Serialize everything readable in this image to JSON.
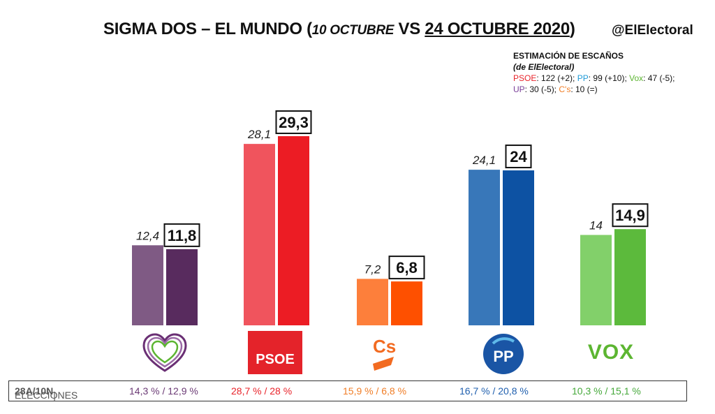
{
  "title": {
    "main": "SIGMA DOS – EL MUNDO (",
    "prev_date": "10 OCTUBRE",
    "vs": " VS ",
    "new_date": "24 OCTUBRE 2020",
    "close": ")"
  },
  "handle": "@ElElectoral",
  "seats": {
    "heading": "ESTIMACIÓN DE ESCAÑOS",
    "subheading": "(de ElElectoral)",
    "rows": [
      [
        {
          "label": "PSOE",
          "value": ": 122 (+2); ",
          "color": "#e8232a"
        },
        {
          "label": "PP",
          "value": ": 99 (+10); ",
          "color": "#1f9bd7"
        },
        {
          "label": "Vox",
          "value": ": 47 (-5);",
          "color": "#5cb531"
        }
      ],
      [
        {
          "label": "UP",
          "value": ": 30 (-5); ",
          "color": "#7a3f98"
        },
        {
          "label": "C's",
          "value": ": 10 (=)",
          "color": "#f07d26"
        }
      ]
    ]
  },
  "colors": {
    "up_prev": "#7f5a84",
    "up_new": "#582b5e",
    "psoe_prev": "#f0545d",
    "psoe_new": "#ec1c24",
    "cs_prev": "#fd7f3b",
    "cs_new": "#fe5000",
    "pp_prev": "#3877b9",
    "pp_new": "#0d52a3",
    "vox_prev": "#82d06a",
    "vox_new": "#5cba3c"
  },
  "chart_data": {
    "type": "bar",
    "categories": [
      "UP",
      "PSOE",
      "Cs",
      "PP",
      "VOX"
    ],
    "series": [
      {
        "name": "10 OCTUBRE",
        "values": [
          12.4,
          28.1,
          7.2,
          24.1,
          14
        ],
        "labels": [
          "12,4",
          "28,1",
          "7,2",
          "24,1",
          "14"
        ]
      },
      {
        "name": "24 OCTUBRE 2020",
        "values": [
          11.8,
          29.3,
          6.8,
          24,
          14.9
        ],
        "labels": [
          "11,8",
          "29,3",
          "6,8",
          "24",
          "14,9"
        ]
      }
    ],
    "ylim": [
      0,
      30
    ],
    "grid": false
  },
  "logos": {
    "psoe_text": "PSOE",
    "cs_text": "Cs",
    "pp_text": "PP",
    "vox_text": "VOX"
  },
  "footer": {
    "label": "ELECCIONES ",
    "label_bold": "28A/10N",
    "sep": "|",
    "values": [
      {
        "text": "14,3 % / 12,9 %",
        "color": "#6b3a75"
      },
      {
        "text": "28,7  % / 28 %",
        "color": "#e8232a"
      },
      {
        "text": "15,9 % / 6,8 %",
        "color": "#f07d26"
      },
      {
        "text": "16,7 % / 20,8 %",
        "color": "#1f5fae"
      },
      {
        "text": "10,3 % / 15,1 %",
        "color": "#45a83a"
      }
    ]
  }
}
